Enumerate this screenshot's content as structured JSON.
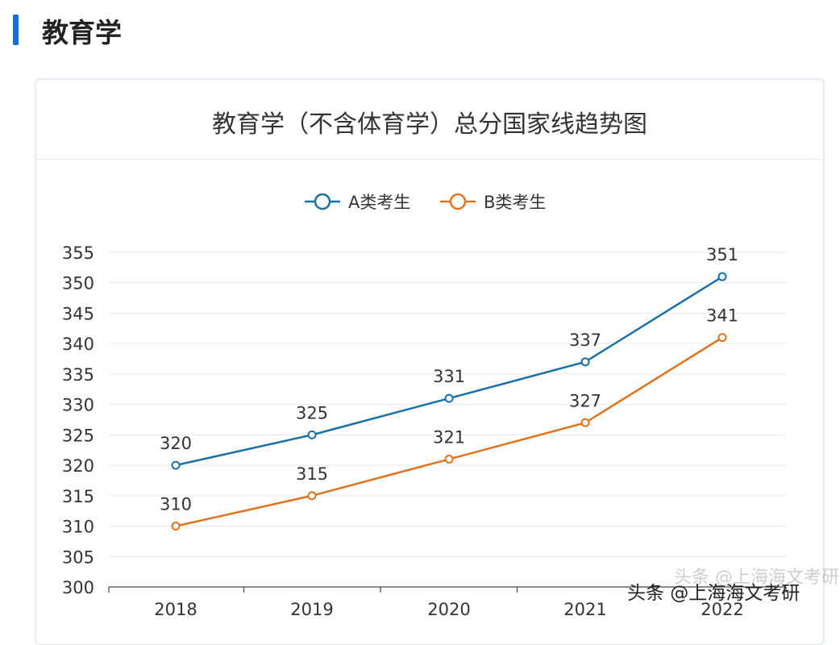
{
  "section": {
    "title": "教育学"
  },
  "chart_data": {
    "type": "line",
    "title": "教育学（不含体育学）总分国家线趋势图",
    "categories": [
      "2018",
      "2019",
      "2020",
      "2021",
      "2022"
    ],
    "series": [
      {
        "name": "A类考生",
        "values": [
          320,
          325,
          331,
          337,
          351
        ],
        "color": "#1870a8"
      },
      {
        "name": "B类考生",
        "values": [
          310,
          315,
          321,
          327,
          341
        ],
        "color": "#e0731c"
      }
    ],
    "ylim": [
      300,
      355
    ],
    "yticks": [
      300,
      305,
      310,
      315,
      320,
      325,
      330,
      335,
      340,
      345,
      350,
      355
    ],
    "grid": true,
    "legend_position": "top-center",
    "data_labels": true
  },
  "watermark": {
    "text": "头条 @上海海文考研",
    "icon": "camera-icon"
  }
}
